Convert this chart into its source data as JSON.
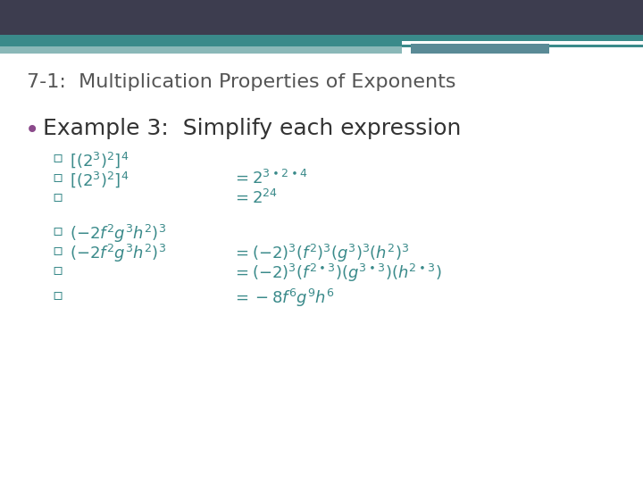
{
  "bg_color": "#ffffff",
  "header_dark_color": "#3d3d4f",
  "header_teal_color": "#3a8a8a",
  "header_light_teal": "#8ab8b8",
  "header_white_stripe": "#ffffff",
  "title_text": "7-1:  Multiplication Properties of Exponents",
  "title_color": "#555555",
  "title_fontsize": 16,
  "bullet_color": "#8b4a8b",
  "bullet_text": "Example 3:  Simplify each expression",
  "bullet_fontsize": 18,
  "sub_color": "#3a8a8a",
  "sub_fontsize": 13,
  "sq": "▫"
}
